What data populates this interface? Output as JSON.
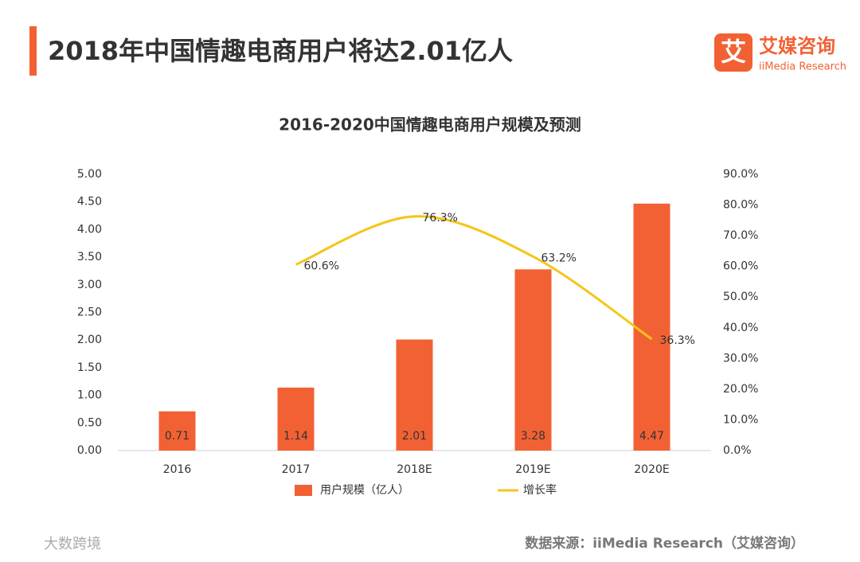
{
  "header": {
    "title": "2018年中国情趣电商用户将达2.01亿人",
    "logo_icon": "艾",
    "logo_name": "艾媒咨询",
    "logo_sub": "iiMedia Research"
  },
  "chart_data": {
    "type": "bar",
    "title": "2016-2020中国情趣电商用户规模及预测",
    "categories": [
      "2016",
      "2017",
      "2018E",
      "2019E",
      "2020E"
    ],
    "series": [
      {
        "name": "用户规模（亿人）",
        "type": "bar",
        "color": "#f26134",
        "values": [
          0.71,
          1.14,
          2.01,
          3.28,
          4.47
        ]
      },
      {
        "name": "增长率",
        "type": "line",
        "axis": "y2",
        "color": "#f5c518",
        "values": [
          null,
          60.6,
          76.3,
          63.2,
          36.3
        ],
        "value_labels": [
          null,
          "60.6%",
          "76.3%",
          "63.2%",
          "36.3%"
        ]
      }
    ],
    "ylim": [
      0,
      5
    ],
    "yticks": [
      {
        "value": 0,
        "label": "0.00"
      },
      {
        "value": 0.5,
        "label": "0.50"
      },
      {
        "value": 1,
        "label": "1.00"
      },
      {
        "value": 1.5,
        "label": "1.50"
      },
      {
        "value": 2,
        "label": "2.00"
      },
      {
        "value": 2.5,
        "label": "2.50"
      },
      {
        "value": 3,
        "label": "3.00"
      },
      {
        "value": 3.5,
        "label": "3.50"
      },
      {
        "value": 4,
        "label": "4.00"
      },
      {
        "value": 4.5,
        "label": "4.50"
      },
      {
        "value": 5,
        "label": "5.00"
      }
    ],
    "y2lim": [
      0,
      90
    ],
    "y2ticks": [
      {
        "value": 0,
        "label": "0.0%"
      },
      {
        "value": 10,
        "label": "10.0%"
      },
      {
        "value": 20,
        "label": "20.0%"
      },
      {
        "value": 30,
        "label": "30.0%"
      },
      {
        "value": 40,
        "label": "40.0%"
      },
      {
        "value": 50,
        "label": "50.0%"
      },
      {
        "value": 60,
        "label": "60.0%"
      },
      {
        "value": 70,
        "label": "70.0%"
      },
      {
        "value": 80,
        "label": "80.0%"
      },
      {
        "value": 90,
        "label": "90.0%"
      }
    ],
    "grid": false
  },
  "footer": {
    "source": "数据来源：iiMedia Research（艾媒咨询）",
    "watermark": "大数跨境"
  }
}
